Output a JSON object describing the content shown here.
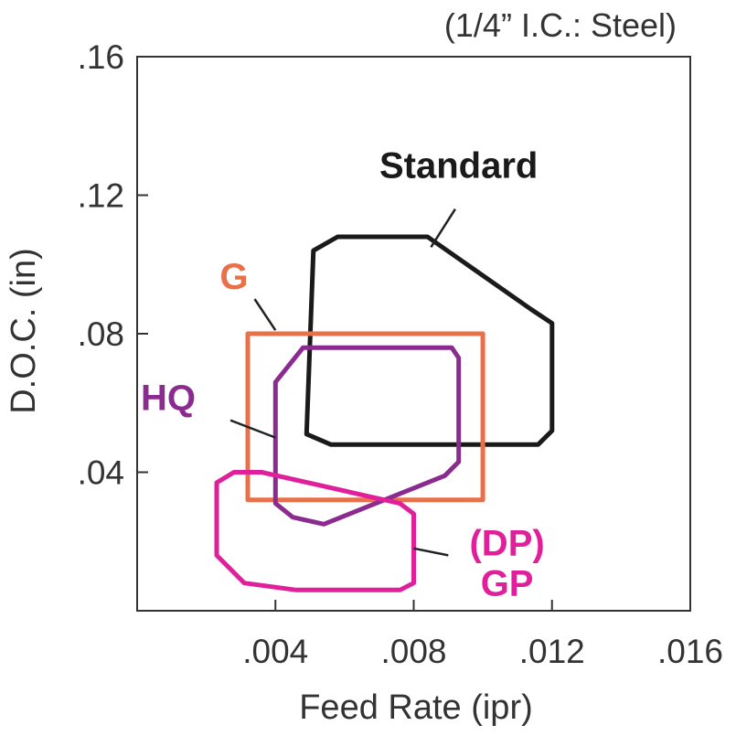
{
  "chart_data": {
    "type": "area",
    "subtitle": "(1/4” I.C.: Steel)",
    "xlabel": "Feed Rate (ipr)",
    "ylabel": "D.O.C. (in)",
    "xlim": [
      0,
      0.016
    ],
    "ylim": [
      0,
      0.16
    ],
    "x_ticks": [
      {
        "value": 0.004,
        "label": ".004"
      },
      {
        "value": 0.008,
        "label": ".008"
      },
      {
        "value": 0.012,
        "label": ".012"
      },
      {
        "value": 0.016,
        "label": ".016"
      }
    ],
    "y_ticks": [
      {
        "value": 0.04,
        "label": ".04"
      },
      {
        "value": 0.08,
        "label": ".08"
      },
      {
        "value": 0.12,
        "label": ".12"
      },
      {
        "value": 0.16,
        "label": ".16"
      }
    ],
    "grid": false,
    "regions": [
      {
        "name": "Standard",
        "color": "#1a1a1a",
        "label_lines": [
          "Standard"
        ],
        "points": [
          [
            0.0051,
            0.104
          ],
          [
            0.0058,
            0.108
          ],
          [
            0.0084,
            0.108
          ],
          [
            0.0114,
            0.087
          ],
          [
            0.012,
            0.083
          ],
          [
            0.012,
            0.052
          ],
          [
            0.0116,
            0.048
          ],
          [
            0.0056,
            0.048
          ],
          [
            0.0049,
            0.051
          ]
        ],
        "label_at": [
          0.0093,
          0.125
        ],
        "leader": [
          [
            0.0092,
            0.116
          ],
          [
            0.0085,
            0.105
          ]
        ]
      },
      {
        "name": "G",
        "color": "#e8704a",
        "label_lines": [
          "G"
        ],
        "points": [
          [
            0.0032,
            0.08
          ],
          [
            0.01,
            0.08
          ],
          [
            0.01,
            0.032
          ],
          [
            0.0032,
            0.032
          ]
        ],
        "label_at": [
          0.0028,
          0.093
        ],
        "leader": [
          [
            0.0034,
            0.09
          ],
          [
            0.004,
            0.081
          ]
        ]
      },
      {
        "name": "HQ",
        "color": "#8b2a8f",
        "label_lines": [
          "HQ"
        ],
        "points": [
          [
            0.0048,
            0.076
          ],
          [
            0.0091,
            0.076
          ],
          [
            0.0093,
            0.073
          ],
          [
            0.0093,
            0.043
          ],
          [
            0.0089,
            0.039
          ],
          [
            0.0054,
            0.025
          ],
          [
            0.0045,
            0.027
          ],
          [
            0.004,
            0.031
          ],
          [
            0.004,
            0.066
          ]
        ],
        "label_at": [
          0.0009,
          0.058
        ],
        "leader": [
          [
            0.0027,
            0.055
          ],
          [
            0.004,
            0.05
          ]
        ]
      },
      {
        "name": "GP",
        "color": "#e0209a",
        "label_lines": [
          "(DP)",
          "GP"
        ],
        "points": [
          [
            0.0028,
            0.04
          ],
          [
            0.0036,
            0.04
          ],
          [
            0.0076,
            0.031
          ],
          [
            0.008,
            0.028
          ],
          [
            0.008,
            0.008
          ],
          [
            0.0076,
            0.006
          ],
          [
            0.0046,
            0.006
          ],
          [
            0.0031,
            0.008
          ],
          [
            0.0023,
            0.016
          ],
          [
            0.0023,
            0.037
          ]
        ],
        "label_at": [
          0.0107,
          0.016
        ],
        "leader": [
          [
            0.009,
            0.016
          ],
          [
            0.008,
            0.018
          ]
        ]
      }
    ]
  }
}
